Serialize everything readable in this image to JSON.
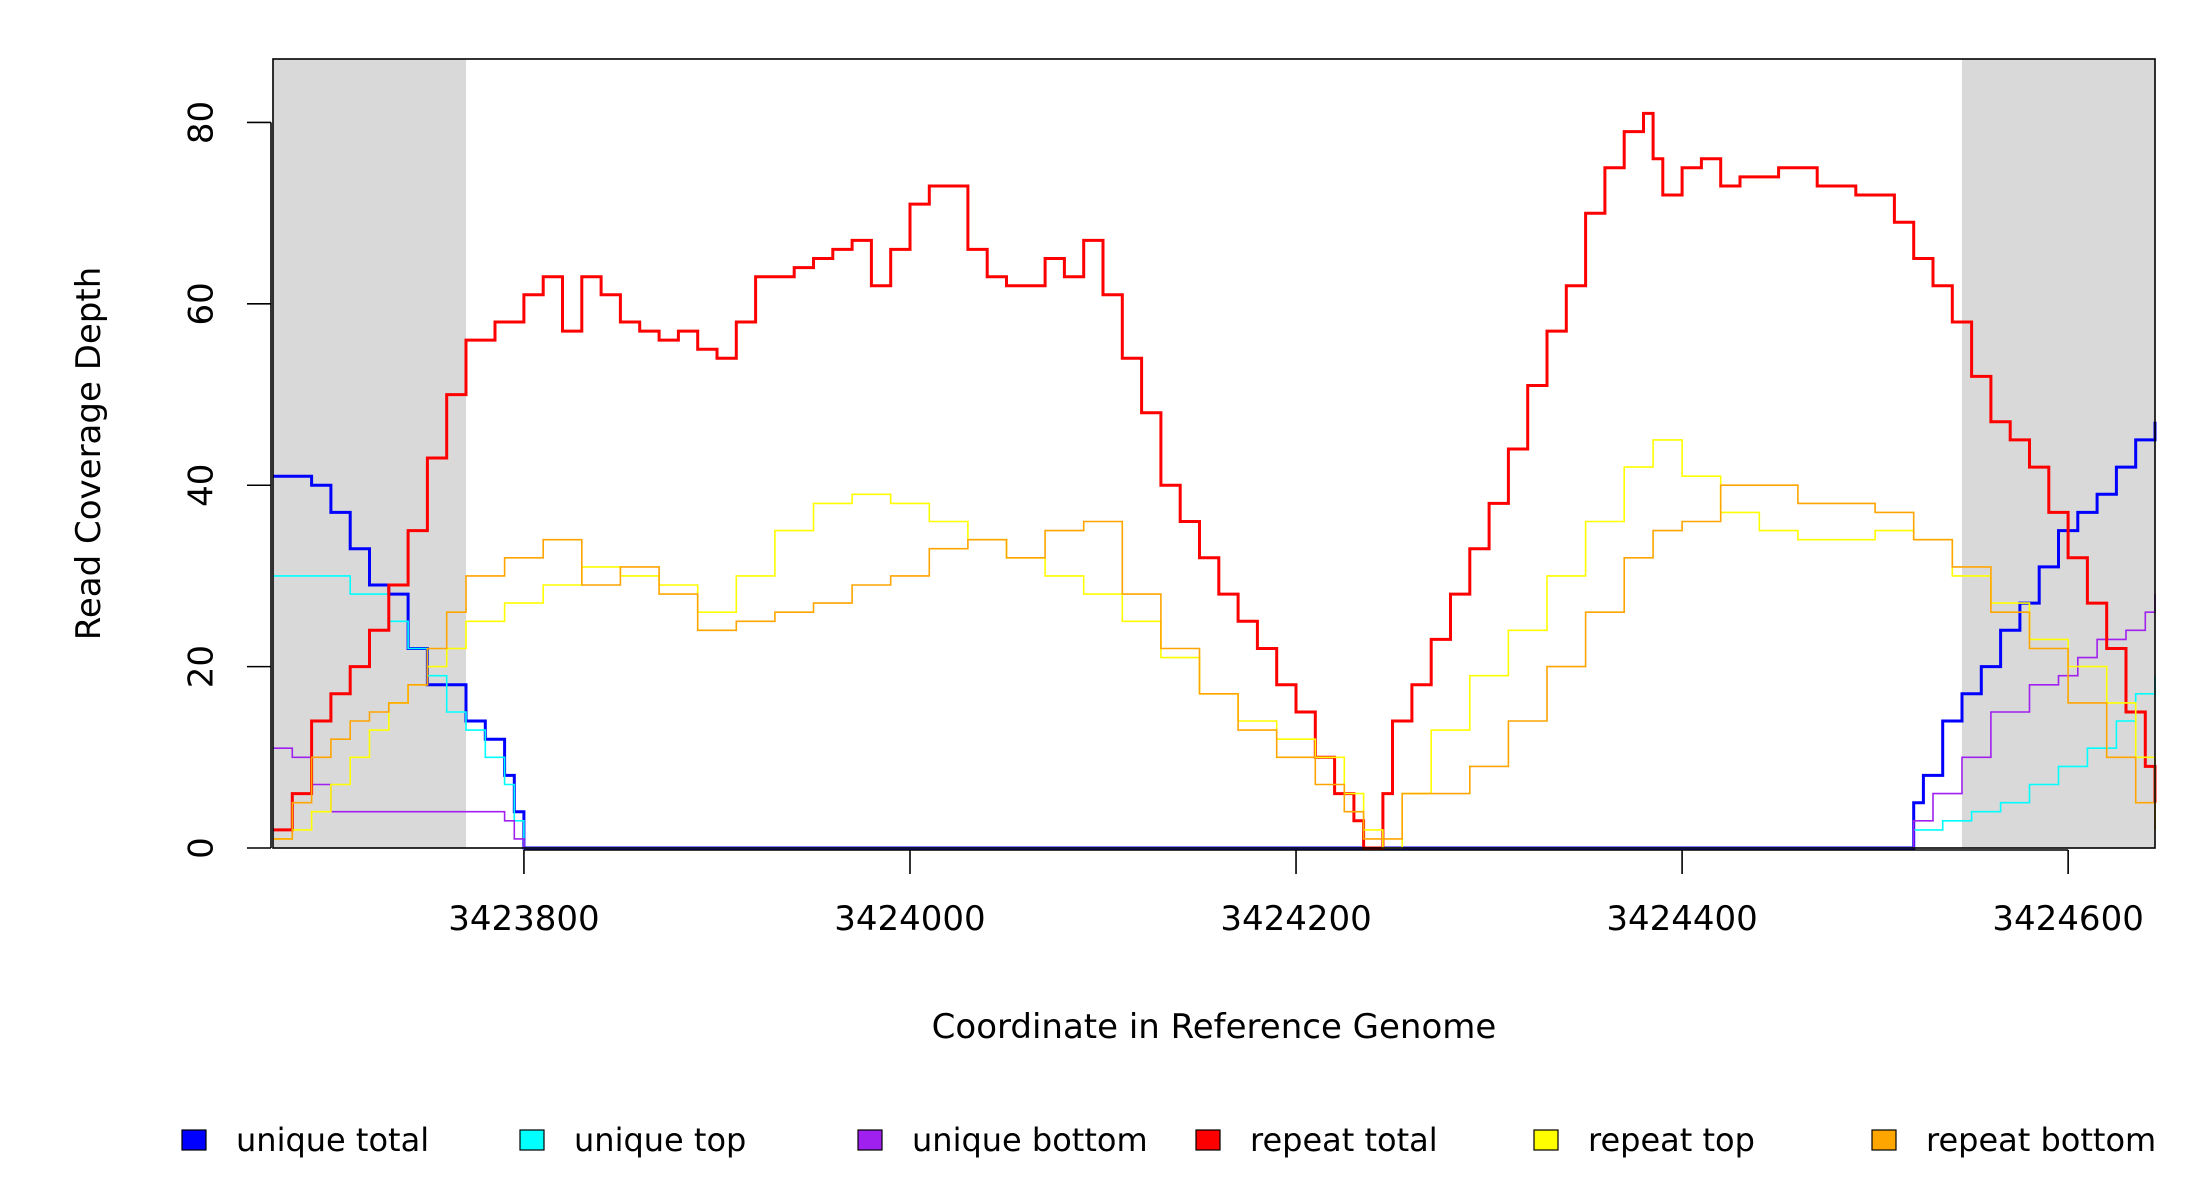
{
  "chart_data": {
    "type": "line",
    "title": "",
    "xlabel": "Coordinate in Reference Genome",
    "ylabel": "Read Coverage Depth",
    "xlim": [
      3423670,
      3424645
    ],
    "ylim": [
      0,
      87
    ],
    "xticks": [
      3423800,
      3424000,
      3424200,
      3424400,
      3424600
    ],
    "xtick_labels": [
      "3423800",
      "3424000",
      "3424200",
      "3424400",
      "3424600"
    ],
    "yticks": [
      0,
      20,
      40,
      60,
      80
    ],
    "ytick_labels": [
      "0",
      "20",
      "40",
      "60",
      "80"
    ],
    "grid": false,
    "shaded_regions": [
      [
        3423670,
        3423770
      ],
      [
        3424545,
        3424645
      ]
    ],
    "shaded_color": "#d9d9d9",
    "legend_position": "bottom",
    "series": [
      {
        "name": "unique total",
        "color": "#0000ff",
        "width": 3,
        "x": [
          3423670,
          3423680,
          3423690,
          3423700,
          3423710,
          3423720,
          3423730,
          3423740,
          3423750,
          3423760,
          3423770,
          3423780,
          3423790,
          3423795,
          3423800,
          3424515,
          3424520,
          3424525,
          3424535,
          3424545,
          3424555,
          3424565,
          3424575,
          3424585,
          3424595,
          3424605,
          3424615,
          3424625,
          3424635,
          3424645
        ],
        "y": [
          41,
          41,
          40,
          37,
          33,
          29,
          28,
          22,
          18,
          18,
          14,
          12,
          8,
          4,
          0,
          0,
          5,
          8,
          14,
          17,
          20,
          24,
          27,
          31,
          35,
          37,
          39,
          42,
          45,
          47
        ]
      },
      {
        "name": "unique top",
        "color": "#00ffff",
        "width": 1.6,
        "x": [
          3423670,
          3423700,
          3423710,
          3423730,
          3423740,
          3423750,
          3423760,
          3423770,
          3423780,
          3423790,
          3423795,
          3423800,
          3424515,
          3424520,
          3424535,
          3424550,
          3424565,
          3424580,
          3424595,
          3424610,
          3424625,
          3424635,
          3424645
        ],
        "y": [
          30,
          30,
          28,
          25,
          22,
          19,
          15,
          13,
          10,
          7,
          3,
          0,
          0,
          2,
          3,
          4,
          5,
          7,
          9,
          11,
          14,
          17,
          19
        ]
      },
      {
        "name": "unique bottom",
        "color": "#a020f0",
        "width": 1.6,
        "x": [
          3423670,
          3423680,
          3423690,
          3423700,
          3423720,
          3423760,
          3423785,
          3423790,
          3423795,
          3423800,
          3424515,
          3424520,
          3424530,
          3424545,
          3424560,
          3424580,
          3424595,
          3424605,
          3424615,
          3424630,
          3424640,
          3424645
        ],
        "y": [
          11,
          10,
          7,
          4,
          4,
          4,
          4,
          3,
          1,
          0,
          0,
          3,
          6,
          10,
          15,
          18,
          19,
          21,
          23,
          24,
          26,
          28
        ]
      },
      {
        "name": "repeat total",
        "color": "#ff0000",
        "width": 3,
        "x": [
          3423670,
          3423680,
          3423690,
          3423700,
          3423710,
          3423720,
          3423730,
          3423740,
          3423750,
          3423760,
          3423770,
          3423785,
          3423800,
          3423810,
          3423820,
          3423830,
          3423840,
          3423850,
          3423860,
          3423870,
          3423880,
          3423890,
          3423900,
          3423910,
          3423920,
          3423930,
          3423940,
          3423950,
          3423960,
          3423970,
          3423980,
          3423990,
          3424000,
          3424010,
          3424020,
          3424030,
          3424040,
          3424050,
          3424060,
          3424070,
          3424080,
          3424090,
          3424100,
          3424110,
          3424120,
          3424130,
          3424140,
          3424150,
          3424160,
          3424170,
          3424180,
          3424190,
          3424200,
          3424210,
          3424220,
          3424230,
          3424235,
          3424240,
          3424245,
          3424250,
          3424260,
          3424270,
          3424280,
          3424290,
          3424300,
          3424310,
          3424320,
          3424330,
          3424340,
          3424350,
          3424360,
          3424370,
          3424380,
          3424385,
          3424390,
          3424400,
          3424410,
          3424420,
          3424430,
          3424440,
          3424450,
          3424460,
          3424470,
          3424480,
          3424490,
          3424500,
          3424510,
          3424520,
          3424530,
          3424540,
          3424550,
          3424560,
          3424570,
          3424580,
          3424590,
          3424600,
          3424610,
          3424620,
          3424630,
          3424640,
          3424645
        ],
        "y": [
          2,
          6,
          14,
          17,
          20,
          24,
          29,
          35,
          43,
          50,
          56,
          58,
          61,
          63,
          57,
          63,
          61,
          58,
          57,
          56,
          57,
          55,
          54,
          58,
          63,
          63,
          64,
          65,
          66,
          67,
          62,
          66,
          71,
          73,
          73,
          66,
          63,
          62,
          62,
          65,
          63,
          67,
          61,
          54,
          48,
          40,
          36,
          32,
          28,
          25,
          22,
          18,
          15,
          10,
          6,
          3,
          0,
          0,
          6,
          14,
          18,
          23,
          28,
          33,
          38,
          44,
          51,
          57,
          62,
          70,
          75,
          79,
          81,
          76,
          72,
          75,
          76,
          73,
          74,
          74,
          75,
          75,
          73,
          73,
          72,
          72,
          69,
          65,
          62,
          58,
          52,
          47,
          45,
          42,
          37,
          32,
          27,
          22,
          15,
          9,
          5
        ]
      },
      {
        "name": "repeat top",
        "color": "#ffff00",
        "width": 1.6,
        "x": [
          3423670,
          3423680,
          3423690,
          3423700,
          3423710,
          3423720,
          3423730,
          3423740,
          3423750,
          3423760,
          3423770,
          3423790,
          3423810,
          3423830,
          3423850,
          3423870,
          3423890,
          3423910,
          3423930,
          3423950,
          3423970,
          3423990,
          3424010,
          3424030,
          3424050,
          3424070,
          3424090,
          3424110,
          3424130,
          3424150,
          3424170,
          3424190,
          3424210,
          3424225,
          3424235,
          3424245,
          3424255,
          3424270,
          3424290,
          3424310,
          3424330,
          3424350,
          3424370,
          3424385,
          3424400,
          3424420,
          3424440,
          3424460,
          3424480,
          3424500,
          3424520,
          3424540,
          3424560,
          3424580,
          3424600,
          3424620,
          3424635,
          3424645
        ],
        "y": [
          1,
          2,
          4,
          7,
          10,
          13,
          16,
          18,
          20,
          22,
          25,
          27,
          29,
          31,
          30,
          29,
          26,
          30,
          35,
          38,
          39,
          38,
          36,
          34,
          32,
          30,
          28,
          25,
          21,
          17,
          14,
          12,
          10,
          6,
          2,
          0,
          6,
          13,
          19,
          24,
          30,
          36,
          42,
          45,
          41,
          37,
          35,
          34,
          34,
          35,
          34,
          30,
          27,
          23,
          20,
          16,
          10,
          3
        ]
      },
      {
        "name": "repeat bottom",
        "color": "#ffa500",
        "width": 1.6,
        "x": [
          3423670,
          3423680,
          3423690,
          3423700,
          3423710,
          3423720,
          3423730,
          3423740,
          3423750,
          3423760,
          3423770,
          3423790,
          3423810,
          3423830,
          3423850,
          3423870,
          3423890,
          3423910,
          3423930,
          3423950,
          3423970,
          3423990,
          3424010,
          3424030,
          3424050,
          3424070,
          3424090,
          3424110,
          3424130,
          3424150,
          3424170,
          3424190,
          3424210,
          3424225,
          3424235,
          3424245,
          3424255,
          3424270,
          3424290,
          3424310,
          3424330,
          3424350,
          3424370,
          3424385,
          3424400,
          3424420,
          3424440,
          3424460,
          3424480,
          3424500,
          3424520,
          3424540,
          3424560,
          3424580,
          3424600,
          3424620,
          3424635,
          3424645
        ],
        "y": [
          1,
          5,
          10,
          12,
          14,
          15,
          16,
          18,
          22,
          26,
          30,
          32,
          34,
          29,
          31,
          28,
          24,
          25,
          26,
          27,
          29,
          30,
          33,
          34,
          32,
          35,
          36,
          28,
          22,
          17,
          13,
          10,
          7,
          4,
          1,
          1,
          6,
          6,
          9,
          14,
          20,
          26,
          32,
          35,
          36,
          40,
          40,
          38,
          38,
          37,
          34,
          31,
          26,
          22,
          16,
          10,
          5,
          2
        ]
      }
    ]
  }
}
